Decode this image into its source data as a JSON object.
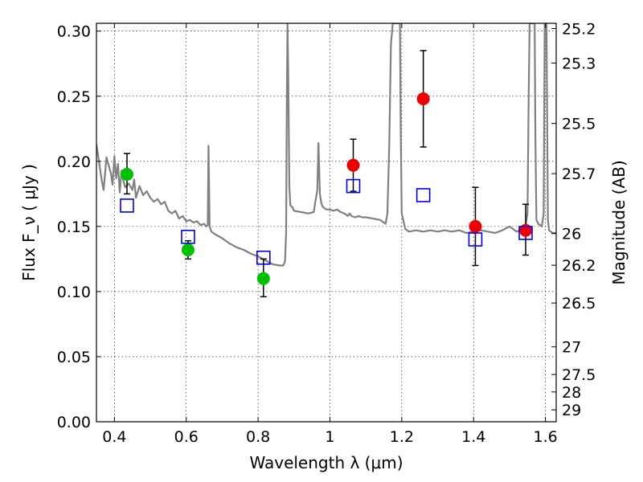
{
  "chart_data": {
    "type": "scatter",
    "xlabel": "Wavelength  λ (μm)",
    "ylabel": "Flux  F_ν  ( μJy )",
    "y2label": "Magnitude (AB)",
    "xlim": [
      0.35,
      1.63
    ],
    "ylim": [
      0.0,
      0.306
    ],
    "grid": true,
    "x_ticks": [
      {
        "value": 0.4,
        "label": "0.4"
      },
      {
        "value": 0.6,
        "label": "0.6"
      },
      {
        "value": 0.8,
        "label": "0.8"
      },
      {
        "value": 1.0,
        "label": "1"
      },
      {
        "value": 1.2,
        "label": "1.2"
      },
      {
        "value": 1.4,
        "label": "1.4"
      },
      {
        "value": 1.6,
        "label": "1.6"
      }
    ],
    "y_ticks": [
      {
        "value": 0.0,
        "label": "0.00"
      },
      {
        "value": 0.05,
        "label": "0.05"
      },
      {
        "value": 0.1,
        "label": "0.10"
      },
      {
        "value": 0.15,
        "label": "0.15"
      },
      {
        "value": 0.2,
        "label": "0.20"
      },
      {
        "value": 0.25,
        "label": "0.25"
      },
      {
        "value": 0.3,
        "label": "0.30"
      }
    ],
    "y2_ticks": [
      {
        "mag": 25.2,
        "label": "25.2"
      },
      {
        "mag": 25.3,
        "label": "25.3"
      },
      {
        "mag": 25.5,
        "label": "25.5"
      },
      {
        "mag": 25.7,
        "label": "25.7"
      },
      {
        "mag": 26.0,
        "label": "26"
      },
      {
        "mag": 26.2,
        "label": "26.2"
      },
      {
        "mag": 26.5,
        "label": "26.5"
      },
      {
        "mag": 27.0,
        "label": "27"
      },
      {
        "mag": 27.5,
        "label": "27.5"
      },
      {
        "mag": 28.0,
        "label": "28"
      },
      {
        "mag": 29.0,
        "label": "29"
      }
    ],
    "series": [
      {
        "style": "line",
        "color": "#808080",
        "points": [
          [
            0.35,
            0.213
          ],
          [
            0.365,
            0.185
          ],
          [
            0.37,
            0.178
          ],
          [
            0.378,
            0.203
          ],
          [
            0.385,
            0.196
          ],
          [
            0.39,
            0.191
          ],
          [
            0.395,
            0.182
          ],
          [
            0.4,
            0.204
          ],
          [
            0.405,
            0.187
          ],
          [
            0.41,
            0.198
          ],
          [
            0.415,
            0.176
          ],
          [
            0.42,
            0.193
          ],
          [
            0.425,
            0.185
          ],
          [
            0.43,
            0.18
          ],
          [
            0.44,
            0.183
          ],
          [
            0.45,
            0.178
          ],
          [
            0.455,
            0.186
          ],
          [
            0.46,
            0.172
          ],
          [
            0.47,
            0.181
          ],
          [
            0.48,
            0.174
          ],
          [
            0.49,
            0.177
          ],
          [
            0.5,
            0.172
          ],
          [
            0.51,
            0.169
          ],
          [
            0.52,
            0.171
          ],
          [
            0.53,
            0.167
          ],
          [
            0.54,
            0.169
          ],
          [
            0.55,
            0.162
          ],
          [
            0.56,
            0.16
          ],
          [
            0.57,
            0.162
          ],
          [
            0.58,
            0.156
          ],
          [
            0.59,
            0.158
          ],
          [
            0.6,
            0.154
          ],
          [
            0.61,
            0.155
          ],
          [
            0.62,
            0.153
          ],
          [
            0.63,
            0.154
          ],
          [
            0.64,
            0.151
          ],
          [
            0.65,
            0.152
          ],
          [
            0.655,
            0.15
          ],
          [
            0.66,
            0.151
          ],
          [
            0.662,
            0.212
          ],
          [
            0.665,
            0.15
          ],
          [
            0.67,
            0.146
          ],
          [
            0.68,
            0.144
          ],
          [
            0.7,
            0.141
          ],
          [
            0.72,
            0.137
          ],
          [
            0.74,
            0.134
          ],
          [
            0.76,
            0.132
          ],
          [
            0.78,
            0.129
          ],
          [
            0.8,
            0.127
          ],
          [
            0.82,
            0.124
          ],
          [
            0.84,
            0.121
          ],
          [
            0.86,
            0.12
          ],
          [
            0.87,
            0.12
          ],
          [
            0.875,
            0.123
          ],
          [
            0.878,
            0.145
          ],
          [
            0.88,
            0.24
          ],
          [
            0.882,
            0.306
          ],
          [
            0.884,
            0.268
          ],
          [
            0.887,
            0.18
          ],
          [
            0.89,
            0.166
          ],
          [
            0.895,
            0.165
          ],
          [
            0.9,
            0.162
          ],
          [
            0.92,
            0.161
          ],
          [
            0.94,
            0.16
          ],
          [
            0.955,
            0.161
          ],
          [
            0.96,
            0.17
          ],
          [
            0.965,
            0.178
          ],
          [
            0.968,
            0.214
          ],
          [
            0.972,
            0.175
          ],
          [
            0.976,
            0.168
          ],
          [
            0.98,
            0.165
          ],
          [
            0.99,
            0.163
          ],
          [
            1.0,
            0.163
          ],
          [
            1.01,
            0.162
          ],
          [
            1.02,
            0.163
          ],
          [
            1.03,
            0.161
          ],
          [
            1.04,
            0.16
          ],
          [
            1.05,
            0.158
          ],
          [
            1.055,
            0.16
          ],
          [
            1.06,
            0.158
          ],
          [
            1.07,
            0.157
          ],
          [
            1.08,
            0.158
          ],
          [
            1.09,
            0.157
          ],
          [
            1.1,
            0.157
          ],
          [
            1.12,
            0.156
          ],
          [
            1.14,
            0.155
          ],
          [
            1.15,
            0.153
          ],
          [
            1.155,
            0.152
          ],
          [
            1.16,
            0.16
          ],
          [
            1.165,
            0.21
          ],
          [
            1.17,
            0.29
          ],
          [
            1.175,
            0.306
          ],
          [
            1.195,
            0.306
          ],
          [
            1.197,
            0.23
          ],
          [
            1.2,
            0.16
          ],
          [
            1.21,
            0.148
          ],
          [
            1.22,
            0.146
          ],
          [
            1.24,
            0.147
          ],
          [
            1.26,
            0.146
          ],
          [
            1.28,
            0.147
          ],
          [
            1.3,
            0.146
          ],
          [
            1.32,
            0.147
          ],
          [
            1.34,
            0.146
          ],
          [
            1.36,
            0.147
          ],
          [
            1.38,
            0.145
          ],
          [
            1.4,
            0.146
          ],
          [
            1.42,
            0.147
          ],
          [
            1.44,
            0.146
          ],
          [
            1.46,
            0.145
          ],
          [
            1.48,
            0.147
          ],
          [
            1.5,
            0.15
          ],
          [
            1.51,
            0.148
          ],
          [
            1.52,
            0.146
          ],
          [
            1.53,
            0.147
          ],
          [
            1.545,
            0.151
          ],
          [
            1.55,
            0.16
          ],
          [
            1.553,
            0.24
          ],
          [
            1.556,
            0.306
          ],
          [
            1.57,
            0.306
          ],
          [
            1.572,
            0.22
          ],
          [
            1.575,
            0.155
          ],
          [
            1.58,
            0.152
          ],
          [
            1.59,
            0.15
          ],
          [
            1.595,
            0.16
          ],
          [
            1.598,
            0.306
          ],
          [
            1.603,
            0.306
          ],
          [
            1.607,
            0.155
          ],
          [
            1.61,
            0.147
          ],
          [
            1.62,
            0.145
          ],
          [
            1.63,
            0.145
          ]
        ]
      },
      {
        "style": "circles",
        "color": "#00c000",
        "points": [
          [
            0.435,
            0.19
          ],
          [
            0.605,
            0.132
          ],
          [
            0.815,
            0.11
          ]
        ],
        "errors": [
          [
            0.435,
            0.175,
            0.206
          ],
          [
            0.605,
            0.125,
            0.139
          ],
          [
            0.815,
            0.096,
            0.125
          ]
        ]
      },
      {
        "style": "circles",
        "color": "#ee0000",
        "points": [
          [
            1.065,
            0.197
          ],
          [
            1.26,
            0.248
          ],
          [
            1.405,
            0.15
          ],
          [
            1.545,
            0.147
          ]
        ],
        "errors": [
          [
            1.065,
            0.177,
            0.217
          ],
          [
            1.26,
            0.211,
            0.285
          ],
          [
            1.405,
            0.12,
            0.18
          ],
          [
            1.545,
            0.128,
            0.167
          ]
        ]
      },
      {
        "style": "squares",
        "color": "#0000ee",
        "points": [
          [
            0.435,
            0.166
          ],
          [
            0.605,
            0.142
          ],
          [
            0.815,
            0.126
          ],
          [
            1.065,
            0.181
          ],
          [
            1.26,
            0.174
          ],
          [
            1.405,
            0.14
          ],
          [
            1.545,
            0.145
          ]
        ]
      }
    ]
  }
}
